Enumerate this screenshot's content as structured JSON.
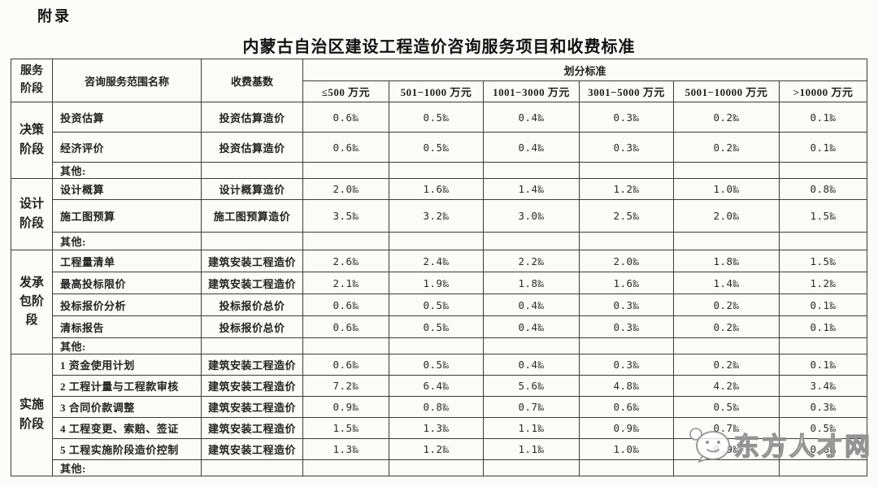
{
  "page": {
    "appendix_label": "附录",
    "title": "内蒙古自治区建设工程造价咨询服务项目和收费标准"
  },
  "table": {
    "headers": {
      "stage": "服务阶段",
      "scope": "咨询服务范围名称",
      "base": "收费基数",
      "division": "划分标准",
      "ranges": [
        "≤500 万元",
        "501−1000 万元",
        "1001−3000 万元",
        "3001−5000 万元",
        "5001−10000 万元",
        ">10000 万元"
      ]
    },
    "sections": [
      {
        "stage": "决策阶段",
        "rows": [
          {
            "scope": "投资估算",
            "base": "投资估算造价",
            "values": [
              "0.6‰",
              "0.5‰",
              "0.4‰",
              "0.3‰",
              "0.2‰",
              "0.1‰"
            ]
          },
          {
            "scope": "经济评价",
            "base": "投资估算造价",
            "values": [
              "0.6‰",
              "0.5‰",
              "0.4‰",
              "0.3‰",
              "0.2‰",
              "0.1‰"
            ]
          },
          {
            "scope": "其他:",
            "base": "",
            "values": [
              "",
              "",
              "",
              "",
              "",
              ""
            ]
          }
        ]
      },
      {
        "stage": "设计阶段",
        "rows": [
          {
            "scope": "设计概算",
            "base": "设计概算造价",
            "values": [
              "2.0‰",
              "1.6‰",
              "1.4‰",
              "1.2‰",
              "1.0‰",
              "0.8‰"
            ]
          },
          {
            "scope": "施工图预算",
            "base": "施工图预算造价",
            "values": [
              "3.5‰",
              "3.2‰",
              "3.0‰",
              "2.5‰",
              "2.0‰",
              "1.5‰"
            ]
          },
          {
            "scope": "其他:",
            "base": "",
            "values": [
              "",
              "",
              "",
              "",
              "",
              ""
            ]
          }
        ]
      },
      {
        "stage": "发承包阶段",
        "rows": [
          {
            "scope": "工程量清单",
            "base": "建筑安装工程造价",
            "values": [
              "2.6‰",
              "2.4‰",
              "2.2‰",
              "2.0‰",
              "1.8‰",
              "1.5‰"
            ]
          },
          {
            "scope": "最高投标限价",
            "base": "建筑安装工程造价",
            "values": [
              "2.1‰",
              "1.9‰",
              "1.8‰",
              "1.6‰",
              "1.4‰",
              "1.2‰"
            ]
          },
          {
            "scope": "投标报价分析",
            "base": "投标报价总价",
            "values": [
              "0.6‰",
              "0.5‰",
              "0.4‰",
              "0.3‰",
              "0.2‰",
              "0.1‰"
            ]
          },
          {
            "scope": "清标报告",
            "base": "投标报价总价",
            "values": [
              "0.6‰",
              "0.5‰",
              "0.4‰",
              "0.3‰",
              "0.2‰",
              "0.1‰"
            ]
          },
          {
            "scope": "其他:",
            "base": "",
            "values": [
              "",
              "",
              "",
              "",
              "",
              ""
            ]
          }
        ]
      },
      {
        "stage": "实施阶段",
        "rows": [
          {
            "scope": "1 资金使用计划",
            "base": "建筑安装工程造价",
            "values": [
              "0.6‰",
              "0.5‰",
              "0.4‰",
              "0.3‰",
              "0.2‰",
              "0.1‰"
            ]
          },
          {
            "scope": "2 工程计量与工程款审核",
            "base": "建筑安装工程造价",
            "values": [
              "7.2‰",
              "6.4‰",
              "5.6‰",
              "4.8‰",
              "4.2‰",
              "3.4‰"
            ]
          },
          {
            "scope": "3 合同价款调整",
            "base": "建筑安装工程造价",
            "values": [
              "0.9‰",
              "0.8‰",
              "0.7‰",
              "0.6‰",
              "0.5‰",
              "0.3‰"
            ]
          },
          {
            "scope": "4 工程变更、索赔、签证",
            "base": "建筑安装工程造价",
            "values": [
              "1.5‰",
              "1.3‰",
              "1.1‰",
              "0.9‰",
              "0.7‰",
              "0.5‰"
            ]
          },
          {
            "scope": "5 工程实施阶段造价控制",
            "base": "建筑安装工程造价",
            "values": [
              "1.3‰",
              "1.2‰",
              "1.1‰",
              "1.0‰",
              "0.9‰",
              "0.6‰"
            ]
          },
          {
            "scope": "其他:",
            "base": "",
            "values": [
              "",
              "",
              "",
              "",
              "",
              ""
            ]
          }
        ]
      }
    ]
  },
  "watermark": {
    "logo_icon": "chat-bubble-face-logo",
    "text": "东方人才网"
  }
}
